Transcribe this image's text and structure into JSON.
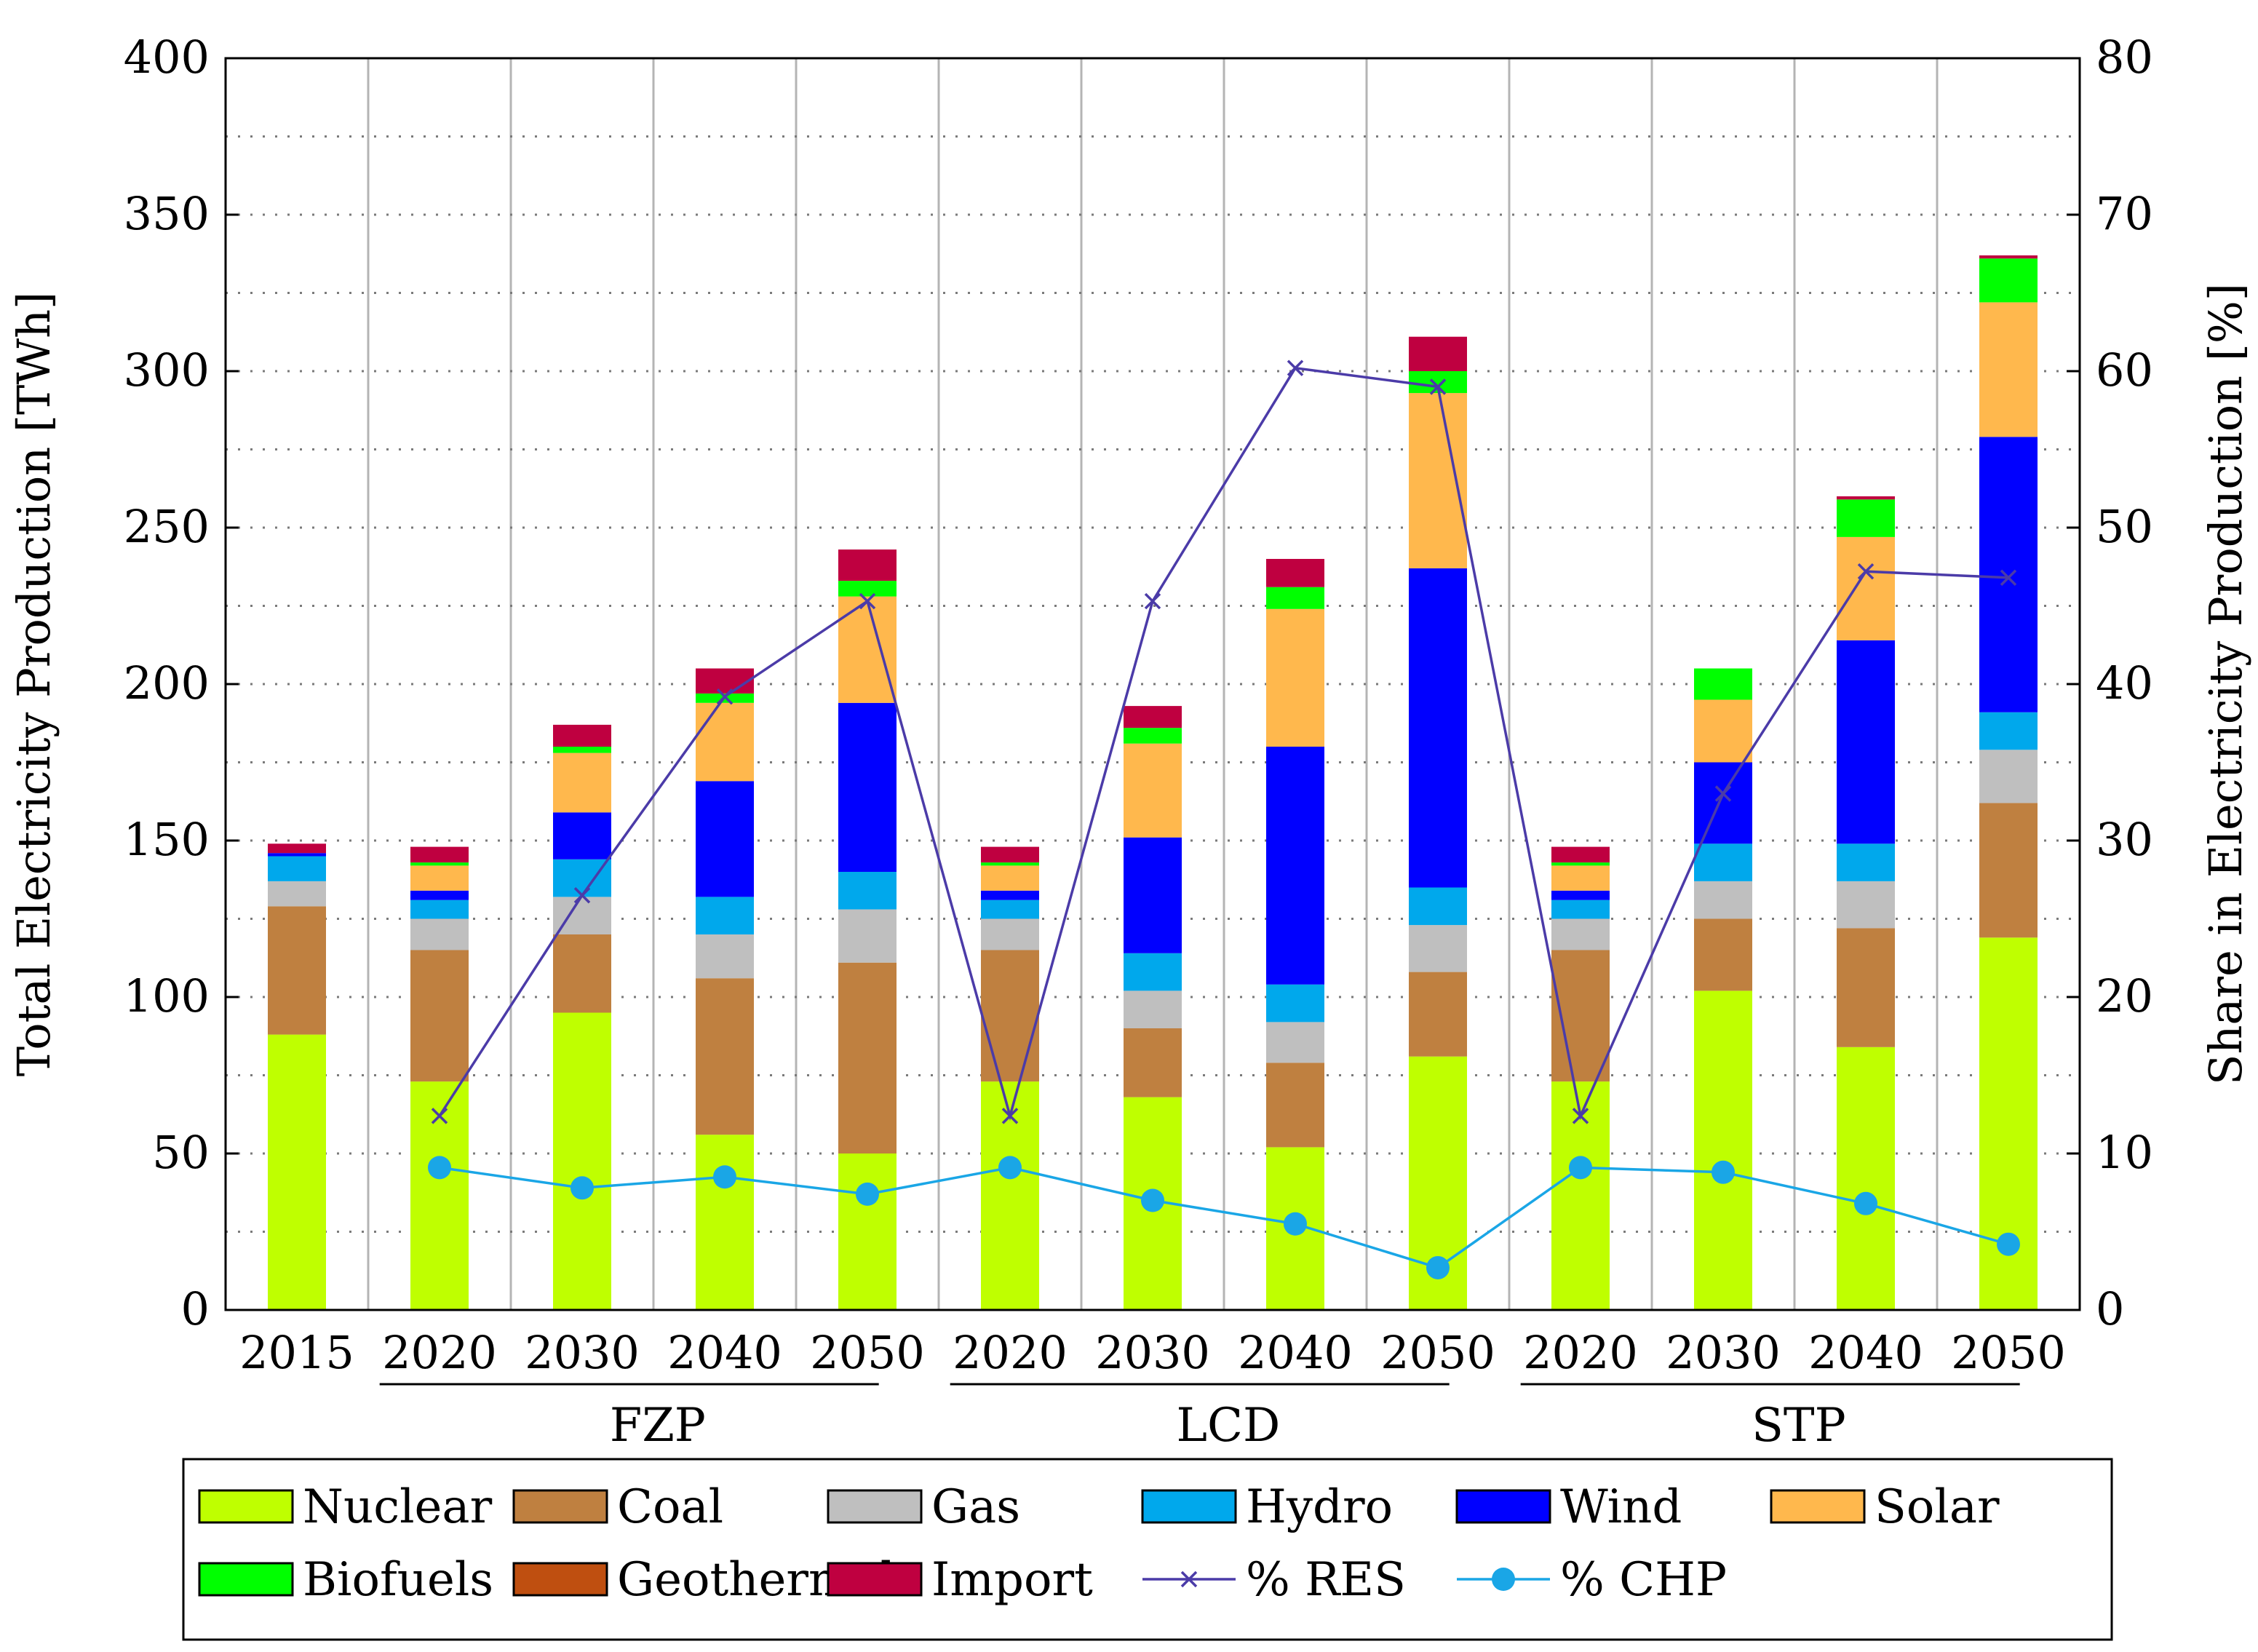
{
  "chart_data": {
    "type": "bar",
    "stacked": true,
    "categories": [
      "2015",
      "2020",
      "2030",
      "2040",
      "2050",
      "2020",
      "2030",
      "2040",
      "2050",
      "2020",
      "2030",
      "2040",
      "2050"
    ],
    "groups": [
      {
        "label": "FZP",
        "from": 1,
        "to": 4
      },
      {
        "label": "LCD",
        "from": 5,
        "to": 8
      },
      {
        "label": "STP",
        "from": 9,
        "to": 12
      }
    ],
    "ylabel": "Total Electricity Production [TWh]",
    "ylabel_right": "Share in Electricity Production [%]",
    "ylim": [
      0,
      400
    ],
    "yticks": [
      0,
      50,
      100,
      150,
      200,
      250,
      300,
      350,
      400
    ],
    "ylim_right": [
      0,
      80
    ],
    "yticks_right": [
      0,
      10,
      20,
      30,
      40,
      50,
      60,
      70,
      80
    ],
    "grid": true,
    "legend_position": "bottom",
    "series": [
      {
        "name": "Nuclear",
        "color": "#bfff00",
        "values": [
          88,
          73,
          95,
          56,
          50,
          73,
          68,
          52,
          81,
          73,
          102,
          84,
          119
        ]
      },
      {
        "name": "Coal",
        "color": "#bf8040",
        "values": [
          41,
          42,
          25,
          50,
          61,
          42,
          22,
          27,
          27,
          42,
          23,
          38,
          43
        ]
      },
      {
        "name": "Gas",
        "color": "#bfbfbf",
        "values": [
          8,
          10,
          12,
          14,
          17,
          10,
          12,
          13,
          15,
          10,
          12,
          15,
          17
        ]
      },
      {
        "name": "Hydro",
        "color": "#00a8ec",
        "values": [
          8,
          6,
          12,
          12,
          12,
          6,
          12,
          12,
          12,
          6,
          12,
          12,
          12
        ]
      },
      {
        "name": "Wind",
        "color": "#0000ff",
        "values": [
          1,
          3,
          15,
          37,
          54,
          3,
          37,
          76,
          102,
          3,
          26,
          65,
          88
        ]
      },
      {
        "name": "Solar",
        "color": "#ffb84d",
        "values": [
          0,
          8,
          19,
          25,
          34,
          8,
          30,
          44,
          56,
          8,
          20,
          33,
          43
        ]
      },
      {
        "name": "Biofuels",
        "color": "#00ff00",
        "values": [
          0,
          1,
          2,
          3,
          5,
          1,
          5,
          7,
          7,
          1,
          10,
          12,
          14
        ]
      },
      {
        "name": "Geothermal",
        "color": "#bf4f10",
        "values": [
          0,
          0,
          0,
          0,
          0,
          0,
          0,
          0,
          0,
          0,
          0,
          0,
          0
        ]
      },
      {
        "name": "Import",
        "color": "#bf0040",
        "values": [
          3,
          5,
          7,
          8,
          10,
          5,
          7,
          9,
          11,
          5,
          0,
          1,
          1
        ]
      }
    ],
    "lines": [
      {
        "name": "% RES",
        "color": "#4b3ba8",
        "marker": "x",
        "axis": "right",
        "x": [
          1,
          2,
          3,
          4,
          5,
          6,
          7,
          8,
          9,
          10,
          11,
          12
        ],
        "values": [
          12.4,
          26.5,
          39.2,
          45.3,
          12.4,
          45.3,
          60.2,
          59.0,
          12.4,
          33.0,
          47.2,
          46.8
        ]
      },
      {
        "name": "% CHP",
        "color": "#1aa6e6",
        "marker": "circle",
        "axis": "right",
        "x": [
          1,
          2,
          3,
          4,
          5,
          6,
          7,
          8,
          9,
          10,
          11,
          12
        ],
        "values": [
          9.1,
          7.8,
          8.5,
          7.4,
          9.1,
          7.0,
          5.5,
          2.7,
          9.1,
          8.8,
          6.8,
          4.2
        ]
      }
    ]
  }
}
